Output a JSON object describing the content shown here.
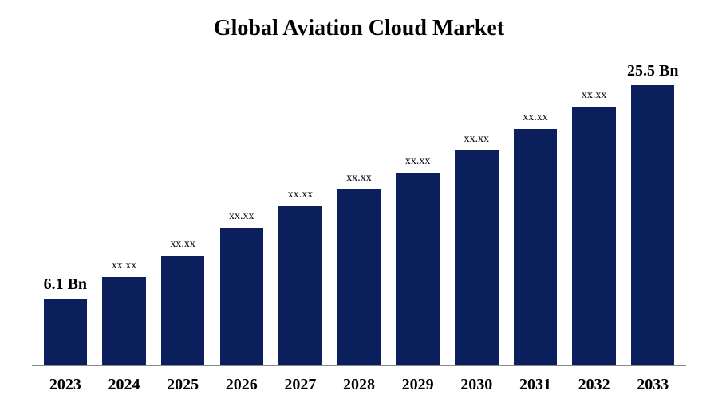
{
  "chart": {
    "type": "bar",
    "title": "Global Aviation Cloud Market",
    "title_fontsize": 28,
    "title_fontweight": "bold",
    "background_color": "#ffffff",
    "bar_color": "#0a1f5c",
    "axis_line_color": "#888888",
    "text_color": "#000000",
    "ymax": 28,
    "x_label_fontsize": 20,
    "x_label_fontweight": "bold",
    "endpoint_label_fontsize": 20,
    "endpoint_label_fontweight": "bold",
    "mid_label_fontsize": 14,
    "mid_label_fontweight": "normal",
    "bar_width_pct": 74,
    "data": [
      {
        "year": "2023",
        "value": 6.1,
        "label": "6.1 Bn",
        "is_endpoint": true
      },
      {
        "year": "2024",
        "value": 8.0,
        "label": "xx.xx",
        "is_endpoint": false
      },
      {
        "year": "2025",
        "value": 10.0,
        "label": "xx.xx",
        "is_endpoint": false
      },
      {
        "year": "2026",
        "value": 12.5,
        "label": "xx.xx",
        "is_endpoint": false
      },
      {
        "year": "2027",
        "value": 14.5,
        "label": "xx.xx",
        "is_endpoint": false
      },
      {
        "year": "2028",
        "value": 16.0,
        "label": "xx.xx",
        "is_endpoint": false
      },
      {
        "year": "2029",
        "value": 17.5,
        "label": "xx.xx",
        "is_endpoint": false
      },
      {
        "year": "2030",
        "value": 19.5,
        "label": "xx.xx",
        "is_endpoint": false
      },
      {
        "year": "2031",
        "value": 21.5,
        "label": "xx.xx",
        "is_endpoint": false
      },
      {
        "year": "2032",
        "value": 23.5,
        "label": "xx.xx",
        "is_endpoint": false
      },
      {
        "year": "2033",
        "value": 25.5,
        "label": "25.5 Bn",
        "is_endpoint": true
      }
    ]
  }
}
